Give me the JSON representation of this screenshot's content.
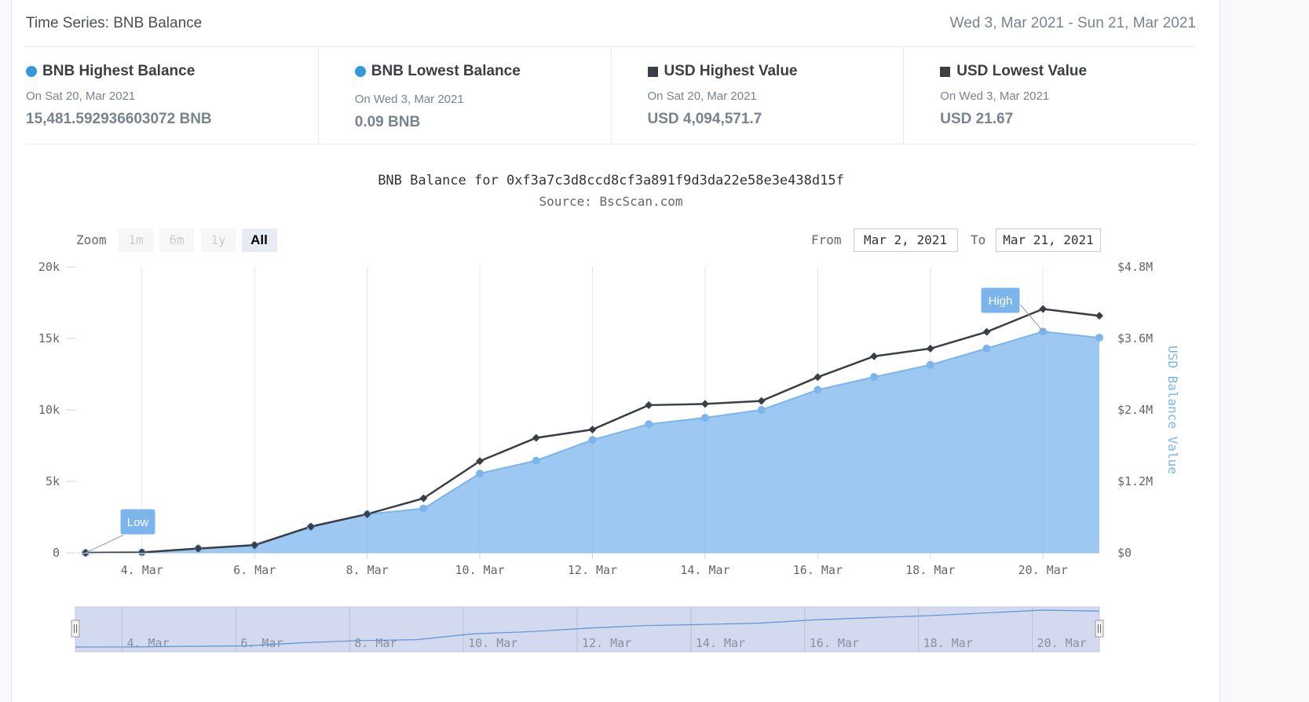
{
  "header": {
    "title": "Time Series: BNB Balance",
    "date_range": "Wed 3, Mar 2021 - Sun 21, Mar 2021"
  },
  "stats": [
    {
      "label": "BNB Highest Balance",
      "date": "On Sat 20, Mar 2021",
      "value": "15,481.592936603072 BNB",
      "marker": "circle",
      "color": "#3498db"
    },
    {
      "label": "BNB Lowest Balance",
      "date": "On Wed 3, Mar 2021",
      "value": "0.09 BNB",
      "marker": "circle",
      "color": "#3498db"
    },
    {
      "label": "USD Highest Value",
      "date": "On Sat 20, Mar 2021",
      "value": "USD 4,094,571.7",
      "marker": "square",
      "color": "#3a3f45"
    },
    {
      "label": "USD Lowest Value",
      "date": "On Wed 3, Mar 2021",
      "value": "USD 21.67",
      "marker": "square",
      "color": "#3a3f45"
    }
  ],
  "range_selector": {
    "zoom_label": "Zoom",
    "buttons": [
      "1m",
      "6m",
      "1y",
      "All"
    ],
    "active": "All",
    "from_label": "From",
    "from_value": "Mar 2, 2021",
    "to_label": "To",
    "to_value": "Mar 21, 2021"
  },
  "chart_data": {
    "type": "area",
    "title": "BNB Balance for 0xf3a7c3d8ccd8cf3a891f9d3da22e58e3e438d15f",
    "subtitle": "Source: BscScan.com",
    "x": [
      3,
      4,
      5,
      6,
      7,
      8,
      9,
      10,
      11,
      12,
      13,
      14,
      15,
      16,
      17,
      18,
      19,
      20,
      21
    ],
    "x_ticks": [
      "4. Mar",
      "6. Mar",
      "8. Mar",
      "10. Mar",
      "12. Mar",
      "14. Mar",
      "16. Mar",
      "18. Mar",
      "20. Mar"
    ],
    "x_tick_values": [
      4,
      6,
      8,
      10,
      12,
      14,
      16,
      18,
      20
    ],
    "y_left": {
      "ticks": [
        "0",
        "5k",
        "10k",
        "15k",
        "20k"
      ],
      "min": 0,
      "max": 20000
    },
    "y_right": {
      "ticks": [
        "$0",
        "$1.2M",
        "$2.4M",
        "$3.6M",
        "$4.8M"
      ],
      "min": 0,
      "max": 4800000,
      "label": "USD Balance Value"
    },
    "series": [
      {
        "axis": "left",
        "kind": "area",
        "color": "#7cb5ec",
        "values": [
          0.09,
          30,
          300,
          500,
          1800,
          2700,
          3100,
          5550,
          6450,
          7900,
          9000,
          9450,
          10000,
          11400,
          12300,
          13150,
          14300,
          15481.59,
          15050
        ]
      },
      {
        "axis": "right",
        "kind": "line",
        "color": "#3a3f45",
        "values": [
          21.67,
          6000,
          72000,
          130000,
          440000,
          650000,
          915000,
          1540000,
          1930000,
          2070000,
          2480000,
          2500000,
          2550000,
          2950000,
          3300000,
          3430000,
          3710000,
          4094571.7,
          3980000
        ]
      }
    ],
    "annotations": [
      {
        "text": "Low",
        "x": 3,
        "axis": "left",
        "y": 0.09
      },
      {
        "text": "High",
        "x": 20,
        "axis": "left",
        "y": 15481.59
      }
    ],
    "navigator": {
      "x_ticks": [
        "4. Mar",
        "6. Mar",
        "8. Mar",
        "10. Mar",
        "12. Mar",
        "14. Mar",
        "16. Mar",
        "18. Mar",
        "20. Mar"
      ]
    }
  }
}
